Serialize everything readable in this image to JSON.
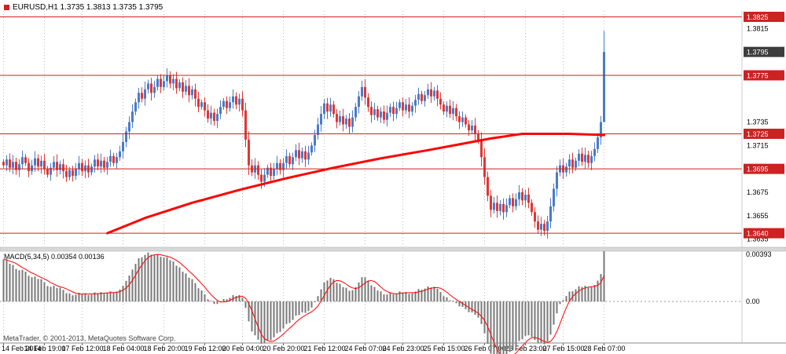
{
  "window": {
    "title": "EURUSD,H1 1.3735 1.3813 1.3735 1.3795"
  },
  "footer": {
    "copyright": "MetaTrader, © 2001-2013, MetaQuotes Software Corp."
  },
  "colors": {
    "up": "#4a7bc8",
    "down": "#e03636",
    "ma": "#ff0000",
    "level": "#cc2222",
    "grid": "#bdbdbd",
    "hist": "#787878",
    "signal": "#ff0000",
    "badge_bg": "#cc2222",
    "bid_badge_bg": "#3d3d3d",
    "axis_text": "#000000"
  },
  "chart_data": {
    "type": "candlestick",
    "symbol": "EURUSD",
    "timeframe": "H1",
    "title": "EURUSD,H1 1.3735 1.3813 1.3735 1.3795",
    "price_panel": {
      "ylim": [
        1.363,
        1.383
      ],
      "ticks": [
        "1.3815",
        "1.3735",
        "1.3715",
        "1.3675",
        "1.3655",
        "1.3635"
      ],
      "level_lines": [
        1.3825,
        1.3775,
        1.3725,
        1.3695,
        1.364
      ],
      "bid": "1.3795",
      "open_first": 1.3701,
      "closes": [
        1.3698,
        1.3703,
        1.3696,
        1.3701,
        1.3694,
        1.3699,
        1.3705,
        1.37,
        1.3693,
        1.3698,
        1.3704,
        1.3697,
        1.3702,
        1.3695,
        1.369,
        1.3696,
        1.3701,
        1.3694,
        1.3699,
        1.3693,
        1.3688,
        1.3694,
        1.3689,
        1.3695,
        1.37,
        1.3693,
        1.3698,
        1.3692,
        1.3697,
        1.3703,
        1.3697,
        1.3702,
        1.3696,
        1.3701,
        1.3706,
        1.37,
        1.3705,
        1.371,
        1.3718,
        1.3727,
        1.3735,
        1.3744,
        1.3752,
        1.376,
        1.3755,
        1.3763,
        1.3768,
        1.376,
        1.3765,
        1.3772,
        1.3765,
        1.377,
        1.3775,
        1.3768,
        1.3772,
        1.3764,
        1.3769,
        1.3761,
        1.3766,
        1.3758,
        1.3763,
        1.3755,
        1.3748,
        1.3752,
        1.3745,
        1.3738,
        1.3743,
        1.3736,
        1.3742,
        1.3748,
        1.3753,
        1.3747,
        1.3752,
        1.3757,
        1.375,
        1.3755,
        1.3745,
        1.372,
        1.3698,
        1.3692,
        1.3698,
        1.369,
        1.3684,
        1.369,
        1.3696,
        1.3689,
        1.3695,
        1.37,
        1.3694,
        1.37,
        1.3706,
        1.3699,
        1.3705,
        1.3711,
        1.3704,
        1.371,
        1.3703,
        1.3709,
        1.3715,
        1.3724,
        1.3733,
        1.3742,
        1.3751,
        1.3744,
        1.375,
        1.3742,
        1.3735,
        1.374,
        1.3733,
        1.3738,
        1.3731,
        1.3739,
        1.3748,
        1.3757,
        1.3765,
        1.3756,
        1.3748,
        1.3741,
        1.3746,
        1.3739,
        1.3744,
        1.3737,
        1.3743,
        1.3748,
        1.3742,
        1.3747,
        1.3752,
        1.3745,
        1.375,
        1.3744,
        1.3749,
        1.3754,
        1.3759,
        1.3753,
        1.3758,
        1.3763,
        1.3757,
        1.3762,
        1.3755,
        1.375,
        1.3744,
        1.3749,
        1.3742,
        1.3747,
        1.374,
        1.3735,
        1.3739,
        1.3733,
        1.3728,
        1.3732,
        1.3725,
        1.372,
        1.3705,
        1.3688,
        1.3672,
        1.366,
        1.3666,
        1.3659,
        1.3665,
        1.3658,
        1.3664,
        1.367,
        1.3663,
        1.3669,
        1.3675,
        1.3668,
        1.3673,
        1.3666,
        1.3658,
        1.365,
        1.3643,
        1.3648,
        1.3642,
        1.365,
        1.3663,
        1.3678,
        1.3692,
        1.3698,
        1.3692,
        1.3697,
        1.3703,
        1.3696,
        1.3702,
        1.3708,
        1.3701,
        1.3707,
        1.37,
        1.3706,
        1.3712,
        1.3722,
        1.3735,
        1.3795
      ],
      "last_bar": {
        "open": 1.3735,
        "high": 1.3813,
        "low": 1.3735,
        "close": 1.3795
      },
      "ma_points": [
        [
          33,
          1.364
        ],
        [
          45,
          1.3653
        ],
        [
          60,
          1.3666
        ],
        [
          75,
          1.3677
        ],
        [
          90,
          1.3687
        ],
        [
          105,
          1.3696
        ],
        [
          120,
          1.3704
        ],
        [
          135,
          1.3711
        ],
        [
          145,
          1.3716
        ],
        [
          155,
          1.3721
        ],
        [
          165,
          1.3725
        ],
        [
          180,
          1.3725
        ],
        [
          191,
          1.3724
        ]
      ]
    },
    "macd_panel": {
      "label": "MACD(5,34,5) 0.00354 0.00136",
      "macd_value": "0.00354",
      "signal_value": "0.00136",
      "ylim": [
        -0.0034,
        0.00393
      ],
      "ticks": [
        {
          "label": "0.00393",
          "value": 0.00393
        },
        {
          "label": "0.00",
          "value": 0
        }
      ],
      "fast": 5,
      "slow": 34,
      "signal_period": 5,
      "seed_offset": 0.0035
    },
    "time_axis": [
      "14 Feb 2014",
      "14 Feb 19:00",
      "17 Feb 12:00",
      "18 Feb 04:00",
      "18 Feb 20:00",
      "19 Feb 12:00",
      "20 Feb 04:00",
      "20 Feb 20:00",
      "21 Feb 12:00",
      "24 Feb 07:00",
      "24 Feb 23:00",
      "25 Feb 15:00",
      "26 Feb 07:00",
      "26 Feb 23:00",
      "27 Feb 15:00",
      "28 Feb 07:00"
    ]
  }
}
